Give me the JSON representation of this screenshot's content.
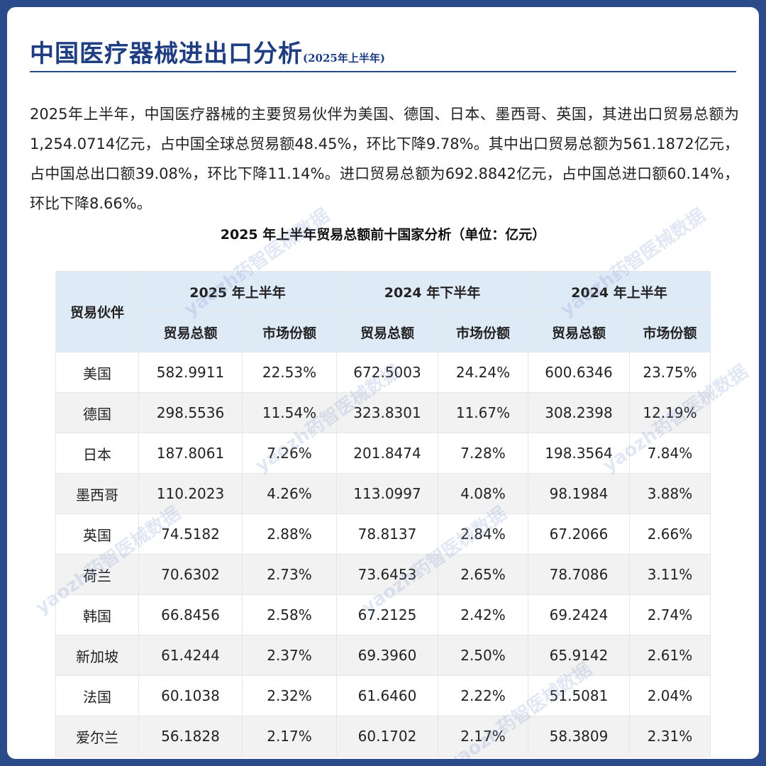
{
  "header": {
    "title": "中国医疗器械进出口分析",
    "subtitle": "(2025年上半年)"
  },
  "summary": "2025年上半年，中国医疗器械的主要贸易伙伴为美国、德国、日本、墨西哥、英国，其进出口贸易总额为1,254.0714亿元，占中国全球总贸易额48.45%，环比下降9.78%。其中出口贸易总额为561.1872亿元，占中国总出口额39.08%，环比下降11.14%。进口贸易总额为692.8842亿元，占中国总进口额60.14%，环比下降8.66%。",
  "table": {
    "title": "2025 年上半年贸易总额前十国家分析（单位：亿元）",
    "partner_header": "贸易伙伴",
    "periods": [
      "2025 年上半年",
      "2024 年下半年",
      "2024 年上半年"
    ],
    "subheaders": [
      "贸易总额",
      "市场份额"
    ],
    "rows": [
      [
        "美国",
        "582.9911",
        "22.53%",
        "672.5003",
        "24.24%",
        "600.6346",
        "23.75%"
      ],
      [
        "德国",
        "298.5536",
        "11.54%",
        "323.8301",
        "11.67%",
        "308.2398",
        "12.19%"
      ],
      [
        "日本",
        "187.8061",
        "7.26%",
        "201.8474",
        "7.28%",
        "198.3564",
        "7.84%"
      ],
      [
        "墨西哥",
        "110.2023",
        "4.26%",
        "113.0997",
        "4.08%",
        "98.1984",
        "3.88%"
      ],
      [
        "英国",
        "74.5182",
        "2.88%",
        "78.8137",
        "2.84%",
        "67.2066",
        "2.66%"
      ],
      [
        "荷兰",
        "70.6302",
        "2.73%",
        "73.6453",
        "2.65%",
        "78.7086",
        "3.11%"
      ],
      [
        "韩国",
        "66.8456",
        "2.58%",
        "67.2125",
        "2.42%",
        "69.2424",
        "2.74%"
      ],
      [
        "新加坡",
        "61.4244",
        "2.37%",
        "69.3960",
        "2.50%",
        "65.9142",
        "2.61%"
      ],
      [
        "法国",
        "60.1038",
        "2.32%",
        "61.6460",
        "2.22%",
        "51.5081",
        "2.04%"
      ],
      [
        "爱尔兰",
        "56.1828",
        "2.17%",
        "60.1702",
        "2.17%",
        "58.3809",
        "2.31%"
      ]
    ]
  },
  "watermark": "yaozh药智医械数据",
  "colors": {
    "background": "#2b4a8a",
    "title": "#1f3e82",
    "header_fill": "#dfeaf7",
    "row_alt": "#f2f2f2"
  }
}
